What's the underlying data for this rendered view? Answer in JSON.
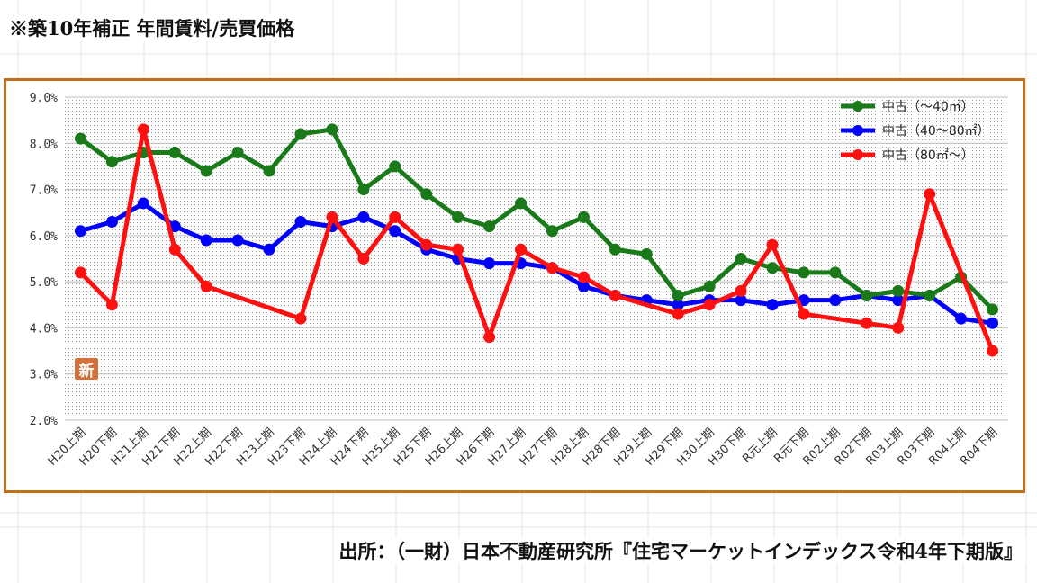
{
  "title": "※築10年補正 年間賃料/売買価格",
  "source": "出所：（一財）日本不動産研究所『住宅マーケットインデックス令和4年下期版』",
  "badge": "新",
  "chart_data": {
    "type": "line",
    "categories": [
      "H20上期",
      "H20下期",
      "H21上期",
      "H21下期",
      "H22上期",
      "H22下期",
      "H23上期",
      "H23下期",
      "H24上期",
      "H24下期",
      "H25上期",
      "H25下期",
      "H26上期",
      "H26下期",
      "H27上期",
      "H27下期",
      "H28上期",
      "H28下期",
      "H29上期",
      "H29下期",
      "H30上期",
      "H30下期",
      "R元上期",
      "R元下期",
      "R02上期",
      "R02下期",
      "R03上期",
      "R03下期",
      "R04上期",
      "R04下期"
    ],
    "ylim": [
      2.0,
      9.0
    ],
    "yticks": [
      "2.0%",
      "3.0%",
      "4.0%",
      "5.0%",
      "6.0%",
      "7.0%",
      "8.0%",
      "9.0%"
    ],
    "grid": true,
    "legend_position": "top-right",
    "series": [
      {
        "name": "中古（～40㎡）",
        "color": "#1a7a1a",
        "values": [
          8.1,
          7.6,
          7.8,
          7.8,
          7.4,
          7.8,
          7.4,
          8.2,
          8.3,
          7.0,
          7.5,
          6.9,
          6.4,
          6.2,
          6.7,
          6.1,
          6.4,
          5.7,
          5.6,
          4.7,
          4.9,
          5.5,
          5.3,
          5.2,
          5.2,
          4.7,
          4.8,
          4.7,
          5.1,
          4.4
        ]
      },
      {
        "name": "中古（40～80㎡）",
        "color": "#0000ff",
        "values": [
          6.1,
          6.3,
          6.7,
          6.2,
          5.9,
          5.9,
          5.7,
          6.3,
          6.2,
          6.4,
          6.1,
          5.7,
          5.5,
          5.4,
          5.4,
          5.3,
          4.9,
          4.7,
          4.6,
          4.5,
          4.6,
          4.6,
          4.5,
          4.6,
          4.6,
          4.7,
          4.6,
          4.7,
          4.2,
          4.1
        ]
      },
      {
        "name": "中古（80㎡～）",
        "color": "#ff1010",
        "values": [
          5.2,
          4.5,
          8.3,
          5.7,
          4.9,
          null,
          null,
          4.2,
          6.4,
          5.5,
          6.4,
          5.8,
          5.7,
          3.8,
          5.7,
          5.3,
          5.1,
          4.7,
          null,
          4.3,
          4.5,
          4.8,
          5.8,
          4.3,
          null,
          4.1,
          4.0,
          6.9,
          null,
          3.5
        ]
      }
    ]
  }
}
